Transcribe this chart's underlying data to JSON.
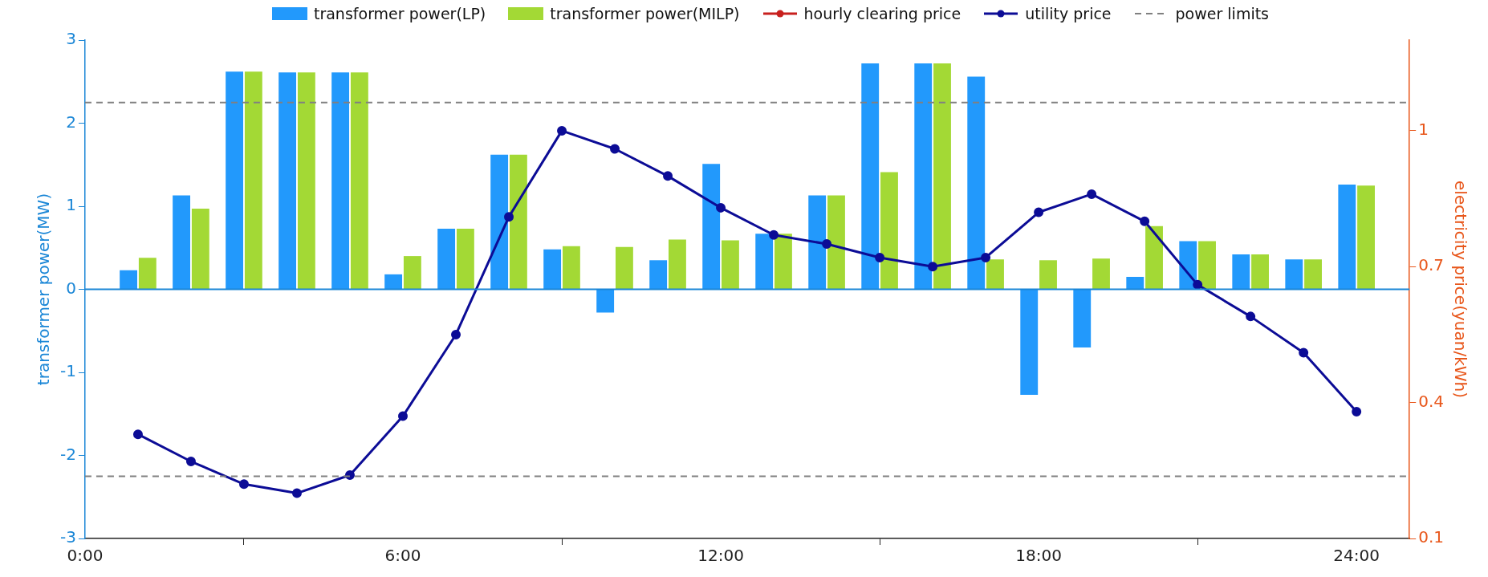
{
  "chart_data": {
    "type": "bar",
    "ylabel": "transformer power(MW)",
    "y2label": "electricity price(yuan/kWh)",
    "x": [
      1,
      2,
      3,
      4,
      5,
      6,
      7,
      8,
      9,
      10,
      11,
      12,
      13,
      14,
      15,
      16,
      17,
      18,
      19,
      20,
      21,
      22,
      23,
      24
    ],
    "xlim": [
      0,
      25
    ],
    "xticks": [
      {
        "value": 0,
        "label": "0:00"
      },
      {
        "value": 6,
        "label": "6:00"
      },
      {
        "value": 12,
        "label": "12:00"
      },
      {
        "value": 18,
        "label": "18:00"
      },
      {
        "value": 24,
        "label": "24:00"
      }
    ],
    "ylim": [
      -3,
      3
    ],
    "yticks": [
      -3,
      -2,
      -1,
      0,
      1,
      2,
      3
    ],
    "y2lim": [
      0.1,
      1.2
    ],
    "y2ticks": [
      0.1,
      0.4,
      0.7,
      1
    ],
    "legend": "top",
    "marker": "circle",
    "series": [
      {
        "name": "transformer power(LP)",
        "color": "#2299fc",
        "values": [
          0.23,
          1.13,
          2.62,
          2.61,
          2.61,
          0.18,
          0.73,
          1.62,
          0.48,
          -0.28,
          0.35,
          1.51,
          0.67,
          1.13,
          2.72,
          2.72,
          2.56,
          -1.27,
          -0.7,
          0.15,
          0.58,
          0.42,
          0.36,
          1.26
        ]
      },
      {
        "name": "transformer power(MILP)",
        "color": "#a3d935",
        "values": [
          0.38,
          0.97,
          2.62,
          2.61,
          2.61,
          0.4,
          0.73,
          1.62,
          0.52,
          0.51,
          0.6,
          0.59,
          0.67,
          1.13,
          1.41,
          2.72,
          0.36,
          0.35,
          0.37,
          0.76,
          0.58,
          0.42,
          0.36,
          1.25
        ]
      },
      {
        "name": "hourly clearing price",
        "type": "line",
        "axis": "y2",
        "color": "#c8201e",
        "values": [
          null,
          null,
          null,
          null,
          null,
          null,
          null,
          null,
          null,
          null,
          null,
          null,
          null,
          null,
          null,
          null,
          null,
          null,
          null,
          null,
          null,
          null,
          null,
          null
        ]
      },
      {
        "name": "utility price",
        "type": "line",
        "axis": "y2",
        "color": "#0c0c96",
        "values": [
          0.33,
          0.27,
          0.22,
          0.2,
          0.24,
          0.37,
          0.55,
          0.81,
          1.0,
          0.96,
          0.9,
          0.83,
          0.77,
          0.75,
          0.72,
          0.7,
          0.72,
          0.82,
          0.86,
          0.8,
          0.66,
          0.59,
          0.51,
          0.38
        ]
      }
    ],
    "ref_lines": [
      {
        "axis": "y",
        "value": 0,
        "color": "#1a86d6",
        "line_style": "solid"
      },
      {
        "axis": "y",
        "value": 2.25,
        "label": "power limits",
        "color": "#808080",
        "line_style": "dashed"
      },
      {
        "axis": "y",
        "value": -2.25,
        "color": "#808080",
        "line_style": "dashed"
      }
    ]
  }
}
